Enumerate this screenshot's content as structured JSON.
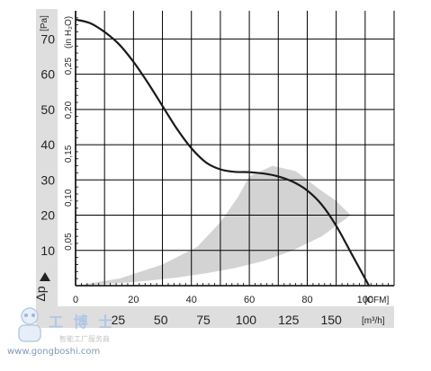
{
  "chart_data": {
    "type": "line",
    "title": "",
    "xlabel": "[CFM]",
    "xlabel2": "[m³/h]",
    "ylabel": "[Pa]",
    "ylabel2": "(in H₂O)",
    "ylabel_symbol": "Δp",
    "xlim": [
      0,
      110
    ],
    "ylim": [
      0,
      78
    ],
    "grid": true,
    "x_ticks": [
      0,
      20,
      40,
      60,
      80,
      100
    ],
    "x2_ticks": [
      25,
      50,
      75,
      100,
      125,
      150
    ],
    "y_ticks": [
      10,
      20,
      30,
      40,
      50,
      60,
      70
    ],
    "y2_ticks": [
      "0,05",
      "0,10",
      "0,15",
      "0,20",
      "0,25"
    ],
    "series": [
      {
        "x": [
          0,
          5,
          10,
          15,
          20,
          25,
          30,
          35,
          40,
          45,
          50,
          55,
          60,
          65,
          70,
          75,
          80,
          85,
          90,
          95,
          100,
          104
        ],
        "values": [
          75.5,
          74.5,
          72,
          68.5,
          63.5,
          57.5,
          51,
          44.5,
          39,
          35,
          33,
          32.3,
          32.2,
          31.8,
          31,
          29.5,
          27,
          23,
          17,
          9.5,
          2,
          -4
        ]
      }
    ],
    "region": {
      "upper": {
        "x": [
          0,
          15,
          30,
          42,
          50,
          56,
          60,
          68,
          76,
          84,
          90,
          95
        ],
        "y": [
          0,
          2,
          6,
          11,
          18,
          25,
          31,
          34,
          32.5,
          27.5,
          24,
          20
        ]
      },
      "lower": {
        "x": [
          95,
          85,
          75,
          65,
          55,
          45,
          35,
          25,
          15,
          5,
          0
        ],
        "y": [
          20,
          14,
          10,
          7,
          5,
          3.5,
          2.3,
          1.4,
          0.7,
          0.2,
          0
        ]
      }
    }
  },
  "watermark": {
    "big": "工 博 士",
    "small": "智能工厂服务商",
    "url": "www.gongboshi.com"
  },
  "colors": {
    "curve": "#1a1a1a",
    "region": "#d3d3d3",
    "band": "#dedede",
    "grid": "#000000"
  }
}
